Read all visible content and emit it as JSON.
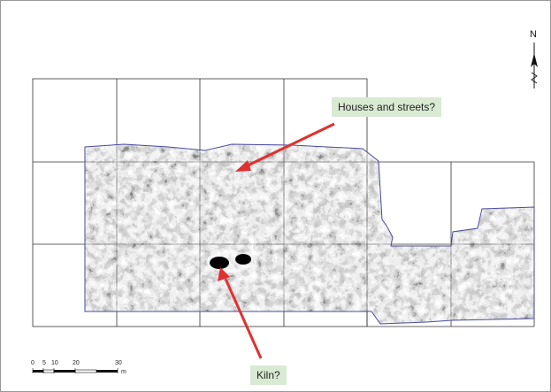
{
  "map": {
    "north_label": "N",
    "annotations": [
      {
        "id": "houses",
        "text": "Houses and streets?"
      },
      {
        "id": "kiln",
        "text": "Kiln?"
      }
    ],
    "scale_bar": {
      "ticks": [
        "0",
        "5",
        "10",
        "20",
        "30"
      ],
      "unit": "m"
    },
    "colors": {
      "grid": "#333333",
      "survey_outline": "#4a4aa0",
      "arrow": "#e03030",
      "label_bg": "#d9ead3"
    }
  }
}
